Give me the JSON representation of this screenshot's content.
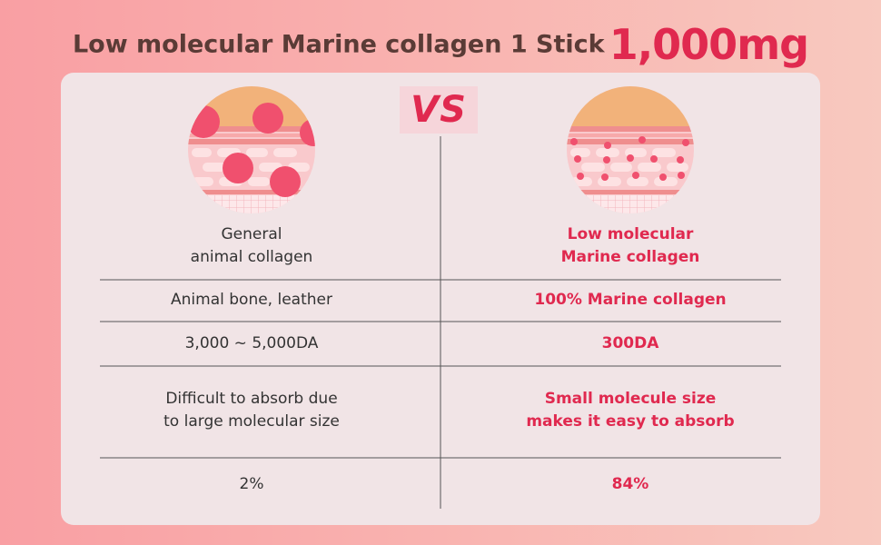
{
  "header": {
    "title": "Low molecular Marine collagen 1 Stick",
    "highlight": "1,000mg"
  },
  "vs": "VS",
  "columns": [
    {
      "label": [
        "General",
        "animal collagen"
      ]
    },
    {
      "label": [
        "Low molecular",
        "Marine collagen"
      ]
    }
  ],
  "table": {
    "rows": [
      [
        "Animal bone, leather",
        "100% Marine collagen"
      ],
      [
        "3,000 ~ 5,000DA",
        "300DA"
      ],
      [
        [
          "Difficult to absorb due",
          "to large molecular size"
        ],
        [
          "Small molecule size",
          "makes it easy to absorb"
        ]
      ],
      [
        "2%",
        "84%"
      ]
    ]
  }
}
